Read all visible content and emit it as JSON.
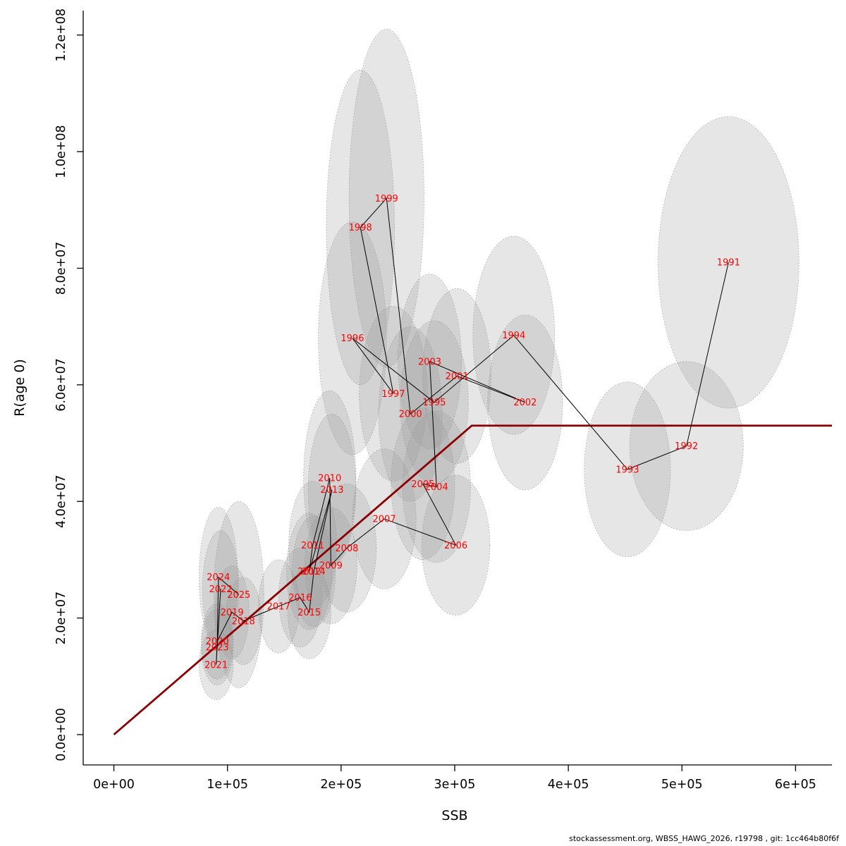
{
  "figure": {
    "footer": "stockassessment.org, WBSS_HAWG_2026, r19798 , git: 1cc464b80f6f"
  },
  "chart_data": {
    "type": "scatter",
    "title": "",
    "xlabel": "SSB",
    "ylabel": "R(age 0)",
    "xlim": [
      -27000,
      632000
    ],
    "ylim": [
      -5200000,
      124200000
    ],
    "grid": false,
    "legend": "none",
    "label_color": "#ff0000",
    "trajectory_color": "#000000",
    "ellipse_style": {
      "fill": "#9a9a9a",
      "fill_opacity": 0.25,
      "stroke": "#8c8c8c"
    },
    "stock_recruit_curve": {
      "type": "hockey-stick",
      "color": "#8b0000",
      "start": [
        0,
        0
      ],
      "breakpoint": [
        315000,
        53000000
      ],
      "end_x": 632000
    },
    "xticks": {
      "values": [
        0,
        100000,
        200000,
        300000,
        400000,
        500000,
        600000
      ],
      "labels": [
        "0e+00",
        "1e+05",
        "2e+05",
        "3e+05",
        "4e+05",
        "5e+05",
        "6e+05"
      ]
    },
    "yticks": {
      "values": [
        0,
        20000000,
        40000000,
        60000000,
        80000000,
        100000000,
        120000000
      ],
      "labels": [
        "0.0e+00",
        "2.0e+07",
        "4.0e+07",
        "6.0e+07",
        "8.0e+07",
        "1.0e+08",
        "1.2e+08"
      ]
    },
    "points": [
      {
        "year": "1991",
        "x": 541000,
        "y": 81000000,
        "rx": 62000,
        "ry": 25000000
      },
      {
        "year": "1992",
        "x": 504000,
        "y": 49500000,
        "rx": 50000,
        "ry": 14500000
      },
      {
        "year": "1993",
        "x": 452000,
        "y": 45500000,
        "rx": 38000,
        "ry": 15000000
      },
      {
        "year": "1994",
        "x": 352000,
        "y": 68500000,
        "rx": 36000,
        "ry": 17000000
      },
      {
        "year": "1995",
        "x": 282000,
        "y": 57000000,
        "rx": 30000,
        "ry": 14000000
      },
      {
        "year": "1996",
        "x": 210000,
        "y": 68000000,
        "rx": 30000,
        "ry": 20000000
      },
      {
        "year": "1997",
        "x": 246000,
        "y": 58500000,
        "rx": 30000,
        "ry": 15000000
      },
      {
        "year": "1998",
        "x": 217000,
        "y": 87000000,
        "rx": 30000,
        "ry": 27000000
      },
      {
        "year": "1999",
        "x": 240000,
        "y": 92000000,
        "rx": 33000,
        "ry": 29000000
      },
      {
        "year": "2000",
        "x": 261000,
        "y": 55000000,
        "rx": 28000,
        "ry": 15000000
      },
      {
        "year": "2001",
        "x": 302000,
        "y": 61500000,
        "rx": 30000,
        "ry": 15000000
      },
      {
        "year": "2002",
        "x": 362000,
        "y": 57000000,
        "rx": 33000,
        "ry": 15000000
      },
      {
        "year": "2003",
        "x": 278000,
        "y": 64000000,
        "rx": 28000,
        "ry": 15000000
      },
      {
        "year": "2004",
        "x": 284000,
        "y": 42500000,
        "rx": 30000,
        "ry": 13000000
      },
      {
        "year": "2005",
        "x": 272000,
        "y": 43000000,
        "rx": 28000,
        "ry": 13000000
      },
      {
        "year": "2006",
        "x": 301000,
        "y": 32500000,
        "rx": 30000,
        "ry": 12000000
      },
      {
        "year": "2007",
        "x": 238000,
        "y": 37000000,
        "rx": 28000,
        "ry": 12000000
      },
      {
        "year": "2008",
        "x": 205000,
        "y": 32000000,
        "rx": 26000,
        "ry": 11000000
      },
      {
        "year": "2009",
        "x": 191000,
        "y": 29000000,
        "rx": 23000,
        "ry": 10000000
      },
      {
        "year": "2010",
        "x": 190000,
        "y": 44000000,
        "rx": 23000,
        "ry": 15000000
      },
      {
        "year": "2011",
        "x": 175000,
        "y": 32500000,
        "rx": 21000,
        "ry": 11000000
      },
      {
        "year": "2012",
        "x": 172000,
        "y": 28000000,
        "rx": 20000,
        "ry": 10000000
      },
      {
        "year": "2013",
        "x": 192000,
        "y": 42000000,
        "rx": 21000,
        "ry": 13000000
      },
      {
        "year": "2014",
        "x": 176000,
        "y": 28000000,
        "rx": 19000,
        "ry": 9500000
      },
      {
        "year": "2015",
        "x": 172000,
        "y": 21000000,
        "rx": 19000,
        "ry": 8000000
      },
      {
        "year": "2016",
        "x": 164000,
        "y": 23500000,
        "rx": 19000,
        "ry": 8500000
      },
      {
        "year": "2017",
        "x": 145000,
        "y": 22000000,
        "rx": 18000,
        "ry": 8000000
      },
      {
        "year": "2018",
        "x": 114000,
        "y": 19500000,
        "rx": 16000,
        "ry": 7500000
      },
      {
        "year": "2019",
        "x": 104000,
        "y": 21000000,
        "rx": 15000,
        "ry": 8000000
      },
      {
        "year": "2020",
        "x": 91000,
        "y": 16000000,
        "rx": 14000,
        "ry": 6500000
      },
      {
        "year": "2021",
        "x": 90000,
        "y": 12000000,
        "rx": 15000,
        "ry": 6000000
      },
      {
        "year": "2022",
        "x": 94000,
        "y": 25000000,
        "rx": 16000,
        "ry": 10000000
      },
      {
        "year": "2023",
        "x": 91000,
        "y": 15000000,
        "rx": 14000,
        "ry": 6500000
      },
      {
        "year": "2024",
        "x": 92000,
        "y": 27000000,
        "rx": 17000,
        "ry": 12000000
      },
      {
        "year": "2025",
        "x": 110000,
        "y": 24000000,
        "rx": 22000,
        "ry": 16000000
      }
    ]
  }
}
